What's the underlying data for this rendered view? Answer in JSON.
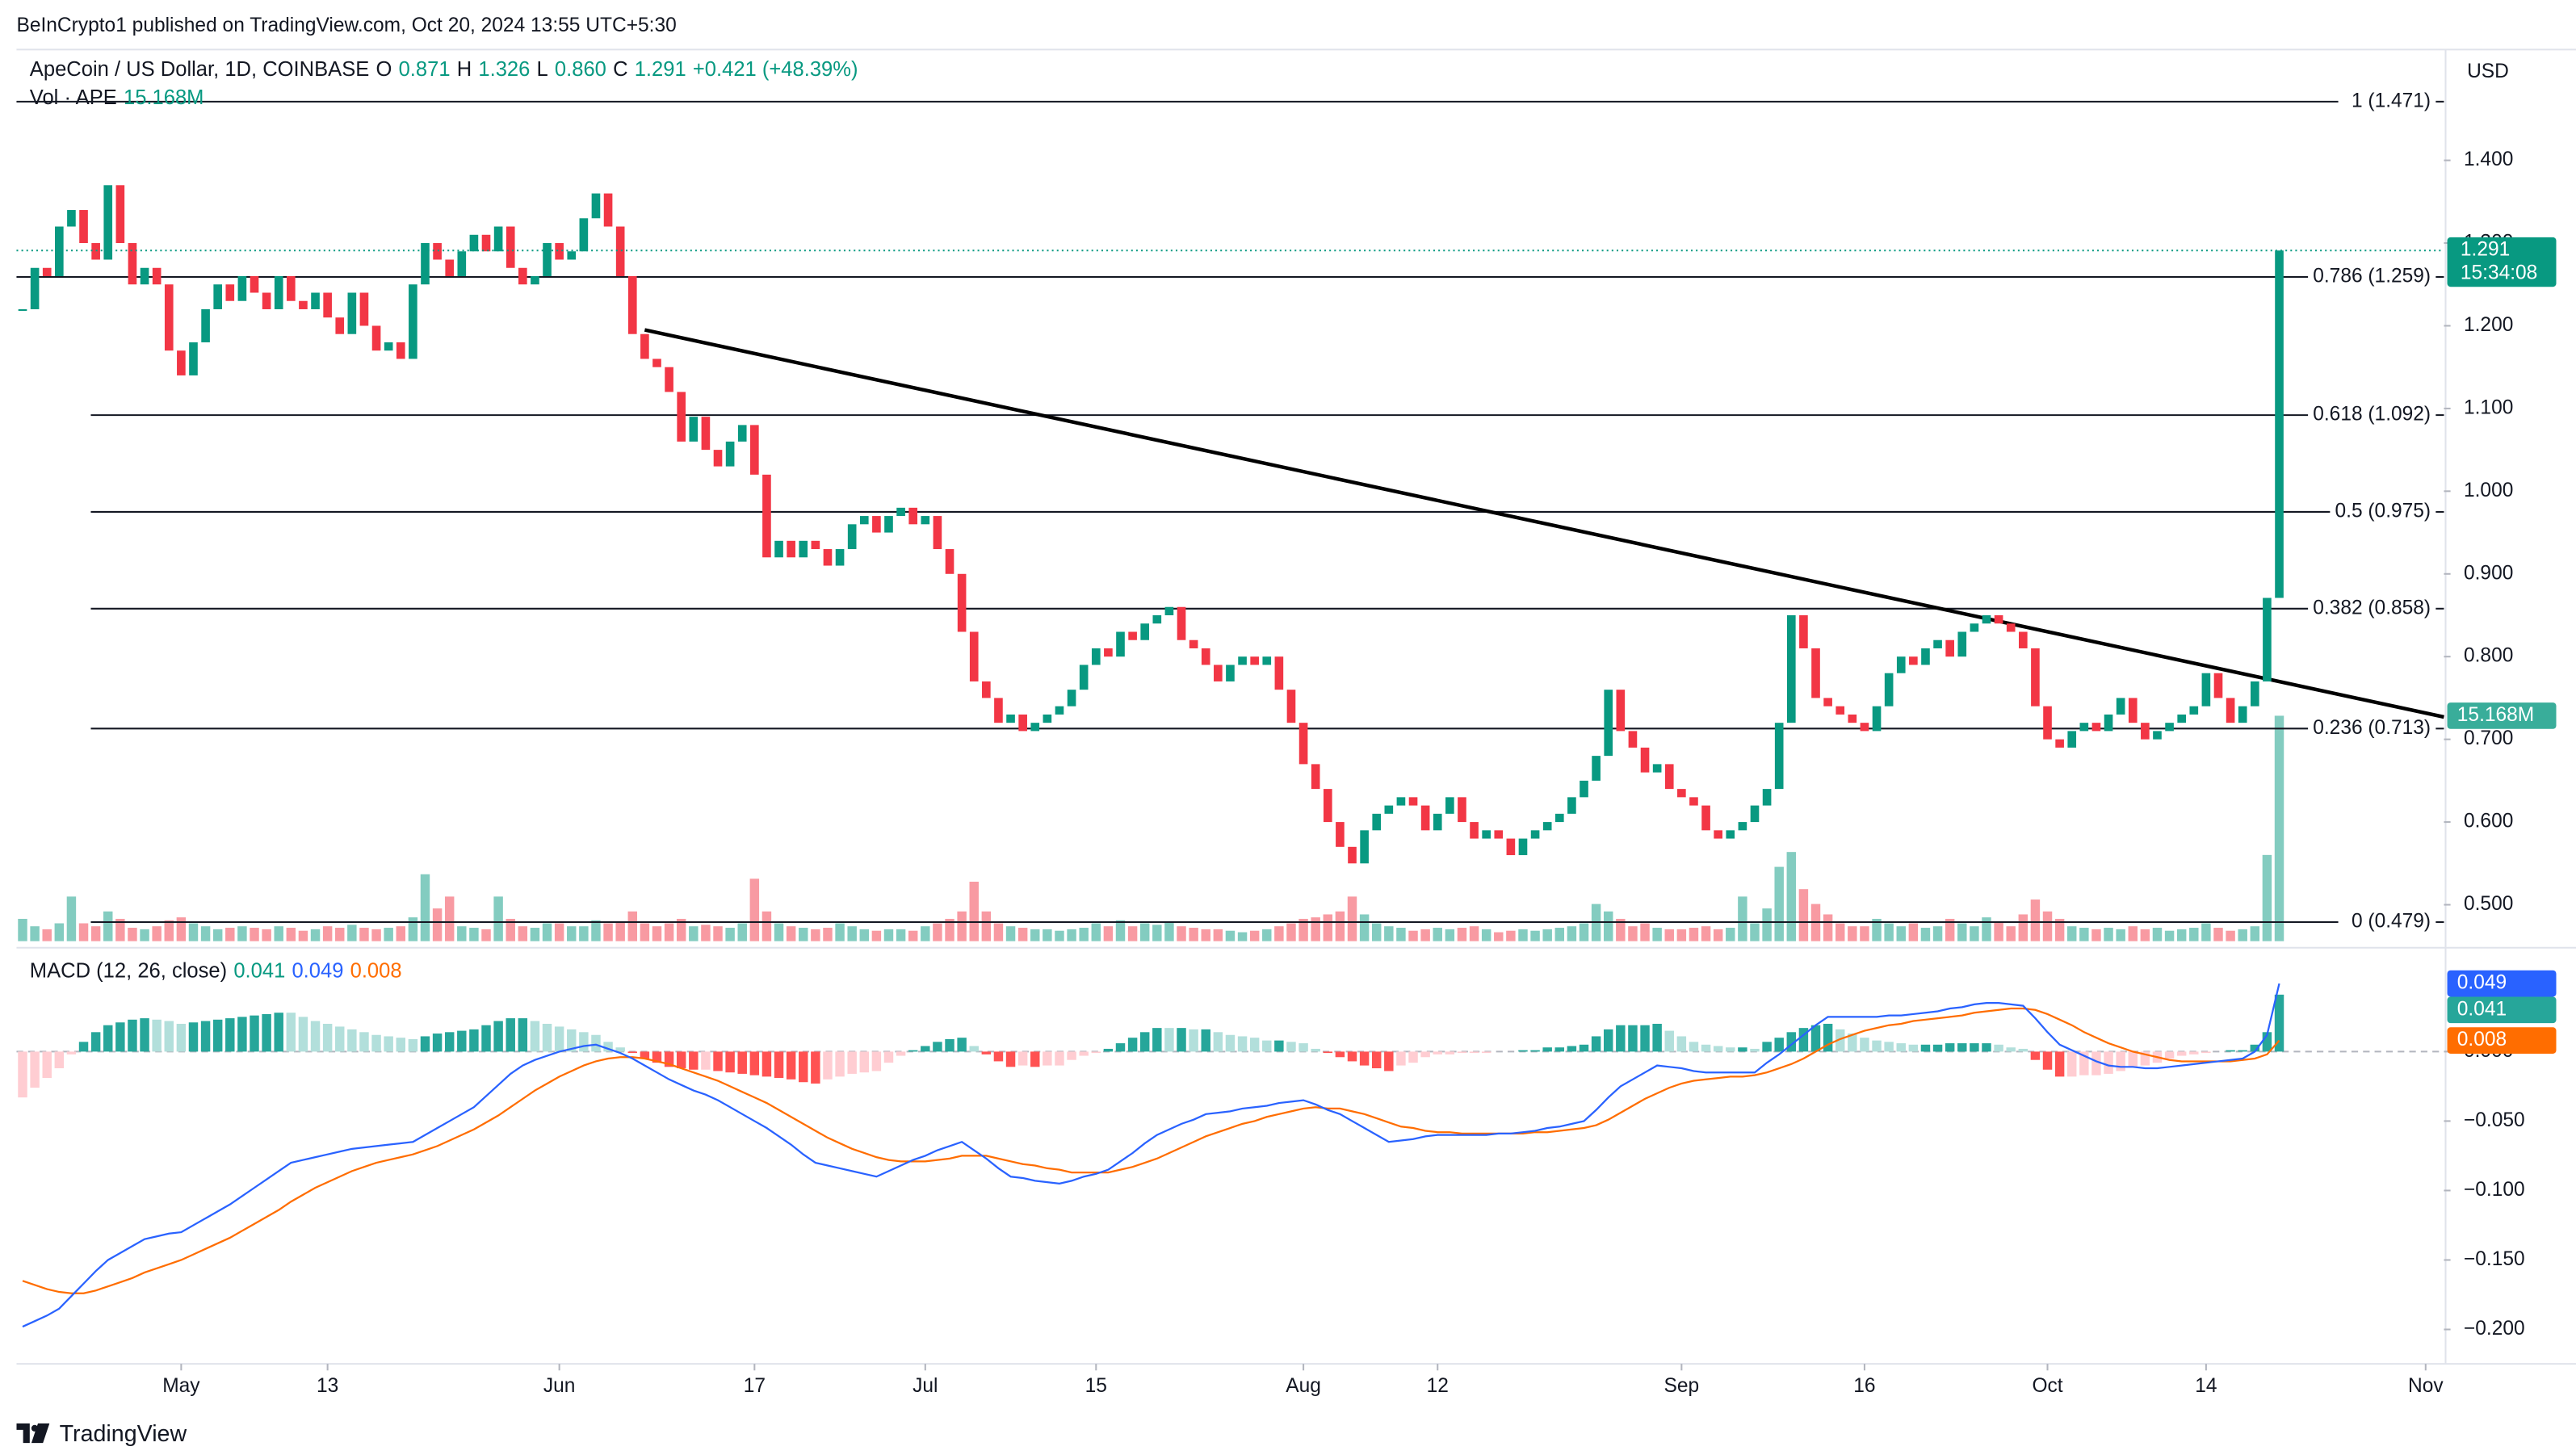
{
  "header": {
    "published": "BeInCrypto1 published on TradingView.com, Oct 20, 2024 13:55 UTC+5:30",
    "symbol": "ApeCoin / US Dollar, 1D, COINBASE",
    "ohlc": [
      {
        "key": "O",
        "value": "0.871"
      },
      {
        "key": "H",
        "value": "1.326"
      },
      {
        "key": "L",
        "value": "0.860"
      },
      {
        "key": "C",
        "value": "1.291"
      }
    ],
    "change": "+0.421 (+48.39%)",
    "volume_label": "Vol · APE",
    "volume_value": "15.168M",
    "currency": "USD",
    "countdown": "15:34:08",
    "brand": "TradingView"
  },
  "chart_data": {
    "type": "candlestick",
    "x": [
      109,
      110,
      111,
      112,
      113,
      114,
      115,
      116,
      117,
      118,
      119,
      120,
      121,
      122,
      123,
      124,
      125,
      126,
      127,
      128,
      129,
      130,
      131,
      132,
      133,
      134,
      135,
      136,
      137,
      138,
      139,
      140,
      141,
      142,
      143,
      144,
      145,
      146,
      147,
      148,
      149,
      150,
      151,
      152,
      153,
      154,
      155,
      156,
      157,
      158,
      159,
      160,
      161,
      162,
      163,
      164,
      165,
      166,
      167,
      168,
      169,
      170,
      171,
      172,
      173,
      174,
      175,
      176,
      177,
      178,
      179,
      180,
      181,
      182,
      183,
      184,
      185,
      186,
      187,
      188,
      189,
      190,
      191,
      192,
      193,
      194,
      195,
      196,
      197,
      198,
      199,
      200,
      201,
      202,
      203,
      204,
      205,
      206,
      207,
      208,
      209,
      210,
      211,
      212,
      213,
      214,
      215,
      216,
      217,
      218,
      219,
      220,
      221,
      222,
      223,
      224,
      225,
      226,
      227,
      228,
      229,
      230,
      231,
      232,
      233,
      234,
      235,
      236,
      237,
      238,
      239,
      240,
      241,
      242,
      243,
      244,
      245,
      246,
      247,
      248,
      249,
      250,
      251,
      252,
      253,
      254,
      255,
      256,
      257,
      258,
      259,
      260,
      261,
      262,
      263,
      264,
      265,
      266,
      267,
      268,
      269,
      270,
      271,
      272,
      273,
      274,
      275,
      276,
      277,
      278,
      279,
      280,
      281,
      282,
      283,
      284,
      285,
      286,
      287,
      288,
      289,
      290,
      291,
      292,
      293,
      294
    ],
    "close": [
      1.22,
      1.27,
      1.26,
      1.32,
      1.34,
      1.3,
      1.28,
      1.37,
      1.3,
      1.25,
      1.27,
      1.25,
      1.17,
      1.14,
      1.18,
      1.22,
      1.25,
      1.23,
      1.26,
      1.24,
      1.22,
      1.26,
      1.23,
      1.22,
      1.24,
      1.21,
      1.19,
      1.24,
      1.2,
      1.17,
      1.18,
      1.16,
      1.25,
      1.3,
      1.28,
      1.26,
      1.29,
      1.31,
      1.29,
      1.32,
      1.27,
      1.25,
      1.26,
      1.3,
      1.28,
      1.29,
      1.33,
      1.36,
      1.32,
      1.26,
      1.19,
      1.16,
      1.15,
      1.12,
      1.06,
      1.09,
      1.05,
      1.03,
      1.06,
      1.08,
      1.02,
      0.92,
      0.94,
      0.92,
      0.94,
      0.93,
      0.91,
      0.93,
      0.96,
      0.97,
      0.95,
      0.97,
      0.98,
      0.96,
      0.97,
      0.93,
      0.9,
      0.83,
      0.77,
      0.75,
      0.72,
      0.73,
      0.71,
      0.72,
      0.73,
      0.74,
      0.76,
      0.79,
      0.81,
      0.8,
      0.83,
      0.82,
      0.84,
      0.85,
      0.86,
      0.82,
      0.81,
      0.79,
      0.77,
      0.79,
      0.8,
      0.79,
      0.8,
      0.76,
      0.72,
      0.67,
      0.64,
      0.6,
      0.57,
      0.55,
      0.59,
      0.61,
      0.62,
      0.63,
      0.62,
      0.59,
      0.61,
      0.63,
      0.6,
      0.58,
      0.59,
      0.58,
      0.56,
      0.58,
      0.59,
      0.6,
      0.61,
      0.63,
      0.65,
      0.68,
      0.76,
      0.71,
      0.69,
      0.66,
      0.67,
      0.64,
      0.63,
      0.62,
      0.59,
      0.58,
      0.59,
      0.6,
      0.62,
      0.64,
      0.72,
      0.85,
      0.81,
      0.75,
      0.74,
      0.73,
      0.72,
      0.71,
      0.74,
      0.78,
      0.8,
      0.79,
      0.81,
      0.82,
      0.8,
      0.83,
      0.84,
      0.85,
      0.84,
      0.83,
      0.81,
      0.74,
      0.7,
      0.69,
      0.71,
      0.72,
      0.71,
      0.73,
      0.75,
      0.72,
      0.7,
      0.71,
      0.72,
      0.73,
      0.74,
      0.78,
      0.75,
      0.72,
      0.74,
      0.77,
      0.871,
      1.291
    ],
    "volume": [
      1.5,
      1.0,
      0.8,
      1.2,
      3.0,
      1.2,
      1.0,
      2.0,
      1.5,
      0.9,
      0.8,
      1.0,
      1.4,
      1.6,
      1.2,
      1.0,
      0.8,
      0.9,
      1.0,
      0.9,
      0.8,
      1.0,
      0.9,
      0.7,
      0.8,
      1.0,
      0.9,
      1.1,
      0.9,
      0.8,
      0.9,
      1.0,
      1.6,
      4.5,
      2.2,
      3.0,
      1.0,
      0.9,
      0.8,
      3.0,
      1.5,
      1.0,
      0.9,
      1.2,
      1.2,
      1.0,
      1.0,
      1.4,
      1.2,
      1.3,
      2.0,
      1.2,
      1.0,
      1.2,
      1.5,
      1.0,
      1.1,
      1.0,
      0.9,
      1.2,
      4.2,
      2.0,
      1.2,
      1.0,
      0.9,
      0.8,
      0.9,
      1.2,
      1.0,
      0.8,
      0.7,
      0.8,
      0.8,
      0.7,
      1.0,
      1.2,
      1.5,
      2.0,
      4.0,
      2.0,
      1.2,
      1.0,
      0.9,
      0.8,
      0.8,
      0.7,
      0.8,
      0.9,
      1.2,
      1.0,
      1.4,
      1.0,
      1.2,
      1.1,
      1.3,
      1.0,
      0.9,
      0.8,
      0.8,
      0.7,
      0.6,
      0.7,
      0.8,
      1.0,
      1.2,
      1.5,
      1.6,
      1.8,
      2.0,
      3.0,
      1.8,
      1.2,
      1.0,
      0.9,
      0.7,
      0.8,
      0.9,
      0.8,
      0.9,
      1.0,
      0.8,
      0.6,
      0.7,
      0.8,
      0.7,
      0.8,
      0.9,
      1.0,
      1.2,
      2.5,
      2.0,
      1.5,
      1.0,
      1.2,
      0.9,
      0.8,
      0.8,
      0.9,
      1.0,
      0.8,
      0.9,
      3.0,
      1.2,
      2.2,
      5.0,
      6.0,
      3.5,
      2.5,
      1.8,
      1.2,
      1.0,
      1.0,
      1.5,
      1.2,
      1.0,
      1.2,
      0.9,
      1.0,
      1.5,
      1.2,
      1.0,
      1.6,
      1.3,
      1.0,
      1.8,
      2.8,
      2.0,
      1.5,
      1.0,
      0.9,
      0.8,
      0.9,
      0.8,
      1.0,
      0.8,
      0.9,
      0.7,
      0.8,
      0.9,
      1.2,
      0.9,
      0.7,
      0.8,
      1.0,
      5.8,
      15.168
    ],
    "volume_lim": [
      0,
      20
    ],
    "up_color": "#089981",
    "down_color": "#f23645",
    "xlim": [
      108.5,
      307.5
    ],
    "xticks": [
      {
        "value": 122,
        "label": "May"
      },
      {
        "value": 134,
        "label": "13"
      },
      {
        "value": 153,
        "label": "Jun"
      },
      {
        "value": 169,
        "label": "17"
      },
      {
        "value": 183,
        "label": "Jul"
      },
      {
        "value": 197,
        "label": "15"
      },
      {
        "value": 214,
        "label": "Aug"
      },
      {
        "value": 225,
        "label": "12"
      },
      {
        "value": 245,
        "label": "Sep"
      },
      {
        "value": 260,
        "label": "16"
      },
      {
        "value": 275,
        "label": "Oct"
      },
      {
        "value": 288,
        "label": "14"
      },
      {
        "value": 306,
        "label": "Nov"
      }
    ],
    "ylim": [
      0.456,
      1.524
    ],
    "yticks": [
      {
        "value": 0.5,
        "label": "0.500"
      },
      {
        "value": 0.6,
        "label": "0.600"
      },
      {
        "value": 0.7,
        "label": "0.700"
      },
      {
        "value": 0.8,
        "label": "0.800"
      },
      {
        "value": 0.9,
        "label": "0.900"
      },
      {
        "value": 1.0,
        "label": "1.000"
      },
      {
        "value": 1.1,
        "label": "1.100"
      },
      {
        "value": 1.2,
        "label": "1.200"
      },
      {
        "value": 1.3,
        "label": "1.300"
      },
      {
        "value": 1.4,
        "label": "1.400"
      }
    ],
    "fib_levels": [
      {
        "value": 1.471,
        "label": "1 (1.471)"
      },
      {
        "value": 1.259,
        "label": "0.786 (1.259)"
      },
      {
        "value": 1.092,
        "label": "0.618 (1.092)"
      },
      {
        "value": 0.975,
        "label": "0.5 (0.975)"
      },
      {
        "value": 0.858,
        "label": "0.382 (0.858)"
      },
      {
        "value": 0.713,
        "label": "0.236 (0.713)"
      },
      {
        "value": 0.479,
        "label": "0 (0.479)"
      }
    ],
    "trendline": {
      "x": [
        160,
        307.5
      ],
      "y": [
        1.195,
        0.727
      ]
    },
    "macd": {
      "title": "MACD (12, 26, close)",
      "hist_label": "0.041",
      "macd_label": "0.049",
      "signal_label": "0.008",
      "macd_color": "#2962ff",
      "signal_color": "#ff6d00",
      "ylim": [
        -0.22,
        0.07
      ],
      "yticks": [
        {
          "value": 0,
          "label": "0.000"
        },
        {
          "value": -0.05,
          "label": "−0.050"
        },
        {
          "value": -0.1,
          "label": "−0.100"
        },
        {
          "value": -0.15,
          "label": "−0.150"
        },
        {
          "value": -0.2,
          "label": "−0.200"
        }
      ],
      "macd": [
        -0.198,
        -0.194,
        -0.19,
        -0.185,
        -0.176,
        -0.167,
        -0.158,
        -0.15,
        -0.145,
        -0.14,
        -0.135,
        -0.133,
        -0.131,
        -0.13,
        -0.125,
        -0.12,
        -0.115,
        -0.11,
        -0.104,
        -0.098,
        -0.092,
        -0.086,
        -0.08,
        -0.078,
        -0.076,
        -0.074,
        -0.072,
        -0.07,
        -0.069,
        -0.068,
        -0.067,
        -0.066,
        -0.065,
        -0.06,
        -0.055,
        -0.05,
        -0.045,
        -0.04,
        -0.032,
        -0.024,
        -0.016,
        -0.01,
        -0.006,
        -0.003,
        0.0,
        0.002,
        0.004,
        0.005,
        0.002,
        -0.001,
        -0.005,
        -0.01,
        -0.015,
        -0.02,
        -0.024,
        -0.028,
        -0.031,
        -0.035,
        -0.04,
        -0.045,
        -0.05,
        -0.055,
        -0.061,
        -0.067,
        -0.074,
        -0.08,
        -0.082,
        -0.084,
        -0.086,
        -0.088,
        -0.09,
        -0.086,
        -0.082,
        -0.078,
        -0.075,
        -0.071,
        -0.068,
        -0.065,
        -0.071,
        -0.077,
        -0.084,
        -0.09,
        -0.091,
        -0.093,
        -0.094,
        -0.095,
        -0.093,
        -0.09,
        -0.088,
        -0.085,
        -0.079,
        -0.073,
        -0.066,
        -0.06,
        -0.056,
        -0.052,
        -0.049,
        -0.045,
        -0.044,
        -0.043,
        -0.041,
        -0.04,
        -0.039,
        -0.037,
        -0.036,
        -0.035,
        -0.038,
        -0.042,
        -0.045,
        -0.05,
        -0.055,
        -0.06,
        -0.065,
        -0.064,
        -0.063,
        -0.061,
        -0.06,
        -0.06,
        -0.06,
        -0.06,
        -0.06,
        -0.059,
        -0.059,
        -0.058,
        -0.057,
        -0.055,
        -0.054,
        -0.052,
        -0.05,
        -0.042,
        -0.033,
        -0.025,
        -0.02,
        -0.015,
        -0.01,
        -0.011,
        -0.012,
        -0.014,
        -0.015,
        -0.015,
        -0.015,
        -0.015,
        -0.015,
        -0.008,
        -0.002,
        0.005,
        0.012,
        0.019,
        0.025,
        0.025,
        0.025,
        0.025,
        0.025,
        0.026,
        0.026,
        0.027,
        0.028,
        0.029,
        0.031,
        0.032,
        0.034,
        0.035,
        0.035,
        0.034,
        0.033,
        0.024,
        0.014,
        0.005,
        0.001,
        -0.003,
        -0.007,
        -0.01,
        -0.011,
        -0.011,
        -0.012,
        -0.012,
        -0.011,
        -0.01,
        -0.009,
        -0.008,
        -0.007,
        -0.006,
        -0.005,
        0.0,
        0.012,
        0.049
      ],
      "signal": [
        -0.165,
        -0.168,
        -0.171,
        -0.173,
        -0.174,
        -0.174,
        -0.172,
        -0.169,
        -0.166,
        -0.163,
        -0.159,
        -0.156,
        -0.153,
        -0.15,
        -0.146,
        -0.142,
        -0.138,
        -0.134,
        -0.129,
        -0.124,
        -0.119,
        -0.114,
        -0.108,
        -0.103,
        -0.098,
        -0.094,
        -0.09,
        -0.086,
        -0.083,
        -0.08,
        -0.078,
        -0.076,
        -0.074,
        -0.071,
        -0.068,
        -0.064,
        -0.06,
        -0.056,
        -0.051,
        -0.046,
        -0.04,
        -0.034,
        -0.028,
        -0.023,
        -0.018,
        -0.014,
        -0.01,
        -0.007,
        -0.005,
        -0.004,
        -0.004,
        -0.005,
        -0.007,
        -0.009,
        -0.012,
        -0.015,
        -0.018,
        -0.021,
        -0.025,
        -0.029,
        -0.033,
        -0.037,
        -0.042,
        -0.047,
        -0.052,
        -0.057,
        -0.062,
        -0.066,
        -0.07,
        -0.073,
        -0.076,
        -0.078,
        -0.079,
        -0.079,
        -0.079,
        -0.078,
        -0.077,
        -0.075,
        -0.075,
        -0.075,
        -0.077,
        -0.079,
        -0.081,
        -0.082,
        -0.084,
        -0.085,
        -0.087,
        -0.087,
        -0.087,
        -0.087,
        -0.085,
        -0.083,
        -0.08,
        -0.077,
        -0.073,
        -0.069,
        -0.065,
        -0.061,
        -0.058,
        -0.055,
        -0.052,
        -0.05,
        -0.047,
        -0.045,
        -0.043,
        -0.041,
        -0.04,
        -0.041,
        -0.041,
        -0.043,
        -0.045,
        -0.048,
        -0.051,
        -0.054,
        -0.055,
        -0.057,
        -0.058,
        -0.058,
        -0.059,
        -0.059,
        -0.059,
        -0.059,
        -0.059,
        -0.059,
        -0.058,
        -0.058,
        -0.057,
        -0.056,
        -0.055,
        -0.053,
        -0.049,
        -0.044,
        -0.039,
        -0.034,
        -0.03,
        -0.026,
        -0.023,
        -0.021,
        -0.02,
        -0.019,
        -0.018,
        -0.018,
        -0.017,
        -0.015,
        -0.012,
        -0.009,
        -0.005,
        0.0,
        0.005,
        0.009,
        0.012,
        0.015,
        0.017,
        0.019,
        0.02,
        0.022,
        0.023,
        0.024,
        0.025,
        0.026,
        0.028,
        0.029,
        0.03,
        0.031,
        0.031,
        0.03,
        0.027,
        0.023,
        0.019,
        0.014,
        0.01,
        0.006,
        0.003,
        0.0,
        -0.002,
        -0.004,
        -0.006,
        -0.007,
        -0.007,
        -0.007,
        -0.007,
        -0.007,
        -0.006,
        -0.005,
        -0.002,
        0.008
      ]
    }
  }
}
